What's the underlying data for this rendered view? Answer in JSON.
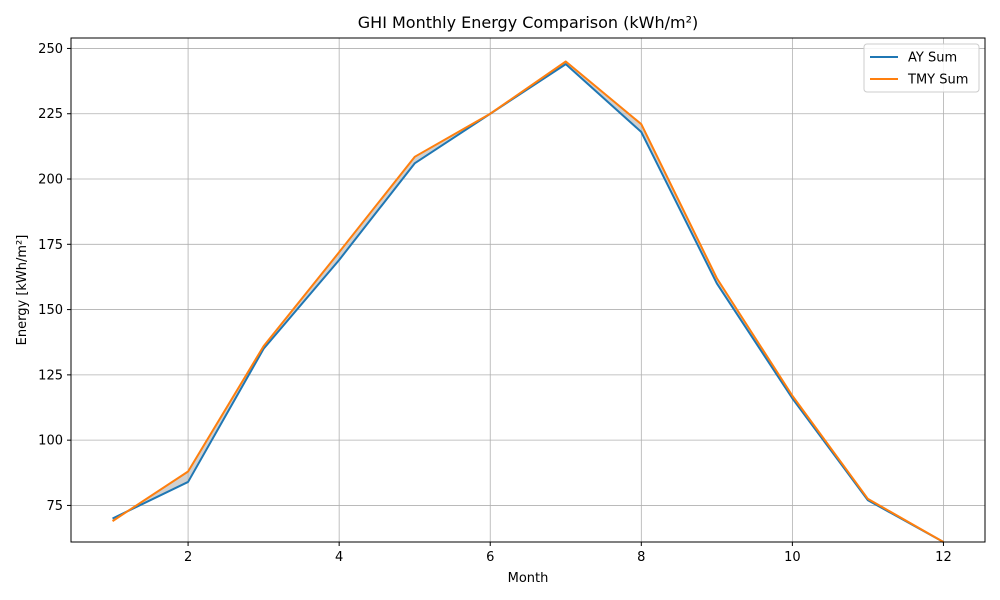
{
  "chart_data": {
    "type": "line",
    "title": "GHI Monthly Energy Comparison (kWh/m²)",
    "xlabel": "Month",
    "ylabel": "Energy [kWh/m²]",
    "xlim": [
      0.45,
      12.55
    ],
    "ylim": [
      61.0,
      254.0
    ],
    "xticks": [
      2,
      4,
      6,
      8,
      10,
      12
    ],
    "yticks": [
      75,
      100,
      125,
      150,
      175,
      200,
      225,
      250
    ],
    "grid": true,
    "legend_position": "top-right",
    "x": [
      1,
      2,
      3,
      4,
      5,
      6,
      7,
      8,
      9,
      10,
      11,
      12
    ],
    "series": [
      {
        "name": "AY Sum",
        "color": "#1f77b4",
        "values": [
          70,
          84,
          135,
          169,
          206,
          225,
          244,
          218,
          160,
          116,
          77,
          61
        ]
      },
      {
        "name": "TMY Sum",
        "color": "#ff7f0e",
        "values": [
          69,
          88,
          136,
          172,
          208.5,
          225,
          245,
          221,
          162,
          117,
          77.5,
          61
        ]
      }
    ],
    "fill_between": {
      "color": "#b0b0b0",
      "opacity": 0.6
    }
  }
}
